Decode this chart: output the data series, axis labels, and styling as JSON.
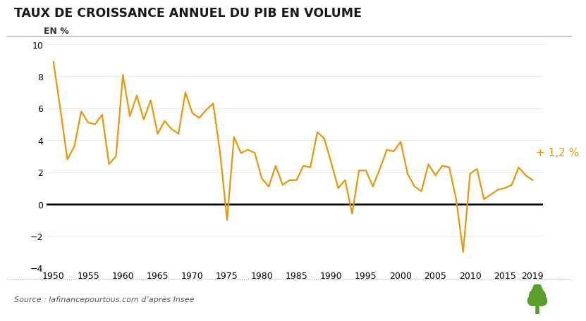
{
  "title": "TAUX DE CROISSANCE ANNUEL DU PIB EN VOLUME",
  "ylabel": "EN %",
  "source": "Source : lafinancepourtous.com d’après Insee",
  "annotation": "+ 1,2 %",
  "line_color": "#E8960A",
  "annotation_color": "#E8960A",
  "title_color": "#1a1a1a",
  "bg_color": "#ffffff",
  "ylim": [
    -4,
    10
  ],
  "yticks": [
    -4,
    -2,
    0,
    2,
    4,
    6,
    8,
    10
  ],
  "xlim": [
    1949.0,
    2020.5
  ],
  "years": [
    1950,
    1951,
    1952,
    1953,
    1954,
    1955,
    1956,
    1957,
    1958,
    1959,
    1960,
    1961,
    1962,
    1963,
    1964,
    1965,
    1966,
    1967,
    1968,
    1969,
    1970,
    1971,
    1972,
    1973,
    1974,
    1975,
    1976,
    1977,
    1978,
    1979,
    1980,
    1981,
    1982,
    1983,
    1984,
    1985,
    1986,
    1987,
    1988,
    1989,
    1990,
    1991,
    1992,
    1993,
    1994,
    1995,
    1996,
    1997,
    1998,
    1999,
    2000,
    2001,
    2002,
    2003,
    2004,
    2005,
    2006,
    2007,
    2008,
    2009,
    2010,
    2011,
    2012,
    2013,
    2014,
    2015,
    2016,
    2017,
    2018,
    2019
  ],
  "values": [
    8.9,
    5.9,
    2.8,
    3.6,
    5.8,
    5.1,
    5.0,
    5.6,
    2.5,
    3.0,
    8.1,
    5.5,
    6.8,
    5.3,
    6.5,
    4.4,
    5.2,
    4.7,
    4.4,
    7.0,
    5.7,
    5.4,
    5.9,
    6.3,
    3.2,
    -1.0,
    4.2,
    3.2,
    3.4,
    3.2,
    1.6,
    1.1,
    2.4,
    1.2,
    1.5,
    1.5,
    2.4,
    2.3,
    4.5,
    4.1,
    2.6,
    1.0,
    1.5,
    -0.6,
    2.1,
    2.1,
    1.1,
    2.2,
    3.4,
    3.3,
    3.9,
    1.9,
    1.1,
    0.8,
    2.5,
    1.8,
    2.4,
    2.3,
    0.3,
    -3.0,
    1.9,
    2.2,
    0.3,
    0.6,
    0.9,
    1.0,
    1.2,
    2.3,
    1.8,
    1.5
  ],
  "tree_color": "#5a9e2f",
  "xticks": [
    1950,
    1955,
    1960,
    1965,
    1970,
    1975,
    1980,
    1985,
    1990,
    1995,
    2000,
    2005,
    2010,
    2015,
    2019
  ]
}
